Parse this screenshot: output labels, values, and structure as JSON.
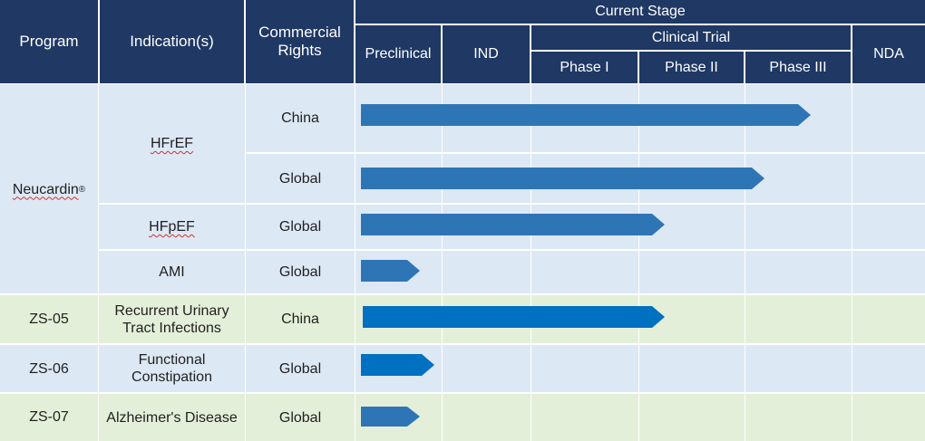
{
  "header": {
    "program": "Program",
    "indication": "Indication(s)",
    "rights_line1": "Commercial",
    "rights_line2": "Rights",
    "current_stage": "Current Stage",
    "preclinical": "Preclinical",
    "ind": "IND",
    "clinical_trial": "Clinical Trial",
    "phase1": "Phase I",
    "phase2": "Phase II",
    "phase3": "Phase III",
    "nda": "NDA"
  },
  "colors": {
    "header_bg": "#1f3864",
    "row_blue": "#dde8f5",
    "row_green": "#e4efd9",
    "bar_blue": "#2e75b6",
    "bar_blue_bright": "#0070c0"
  },
  "programs": {
    "neucardin": {
      "name": "Neucardin",
      "mark": "®"
    },
    "zs05": "ZS-05",
    "zs06": "ZS-06",
    "zs07": "ZS-07"
  },
  "indications": {
    "hfref": "HFrEF",
    "hfpef": "HFpEF",
    "ami": "AMI",
    "ruti_line1": "Recurrent Urinary",
    "ruti_line2": "Tract Infections",
    "fc_line1": "Functional",
    "fc_line2": "Constipation",
    "alz": "Alzheimer's Disease"
  },
  "rights": {
    "r1": "China",
    "r2": "Global",
    "r3": "Global",
    "r4": "Global",
    "r5": "China",
    "r6": "Global",
    "r7": "Global"
  },
  "progress": [
    {
      "row": "Neucardin / HFrEF / China",
      "stage_reached": "Phase III"
    },
    {
      "row": "Neucardin / HFrEF / Global",
      "stage_reached": "Phase III"
    },
    {
      "row": "Neucardin / HFpEF / Global",
      "stage_reached": "Phase II"
    },
    {
      "row": "Neucardin / AMI / Global",
      "stage_reached": "Preclinical"
    },
    {
      "row": "ZS-05 / Recurrent Urinary Tract Infections / China",
      "stage_reached": "Phase II"
    },
    {
      "row": "ZS-06 / Functional Constipation / Global",
      "stage_reached": "Preclinical"
    },
    {
      "row": "ZS-07 / Alzheimer's Disease / Global",
      "stage_reached": "Preclinical"
    }
  ]
}
